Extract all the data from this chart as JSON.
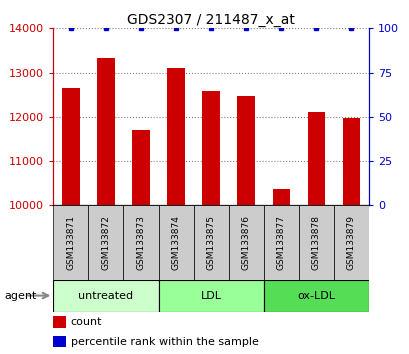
{
  "title": "GDS2307 / 211487_x_at",
  "samples": [
    "GSM133871",
    "GSM133872",
    "GSM133873",
    "GSM133874",
    "GSM133875",
    "GSM133876",
    "GSM133877",
    "GSM133878",
    "GSM133879"
  ],
  "counts": [
    12650,
    13320,
    11700,
    13100,
    12580,
    12480,
    10380,
    12100,
    11970
  ],
  "percentiles": [
    100,
    100,
    100,
    100,
    100,
    100,
    100,
    100,
    100
  ],
  "ylim_left": [
    10000,
    14000
  ],
  "ylim_right": [
    0,
    100
  ],
  "yticks_left": [
    10000,
    11000,
    12000,
    13000,
    14000
  ],
  "yticks_right": [
    0,
    25,
    50,
    75,
    100
  ],
  "groups": [
    {
      "label": "untreated",
      "indices": [
        0,
        1,
        2
      ],
      "color": "#ccffcc"
    },
    {
      "label": "LDL",
      "indices": [
        3,
        4,
        5
      ],
      "color": "#99ff99"
    },
    {
      "label": "ox-LDL",
      "indices": [
        6,
        7,
        8
      ],
      "color": "#55dd55"
    }
  ],
  "bar_color": "#cc0000",
  "percentile_color": "#0000cc",
  "bar_width": 0.5,
  "tick_label_color_left": "#cc0000",
  "tick_label_color_right": "#0000cc",
  "sample_box_color": "#cccccc",
  "agent_label": "agent",
  "legend_count_label": "count",
  "legend_pct_label": "percentile rank within the sample"
}
